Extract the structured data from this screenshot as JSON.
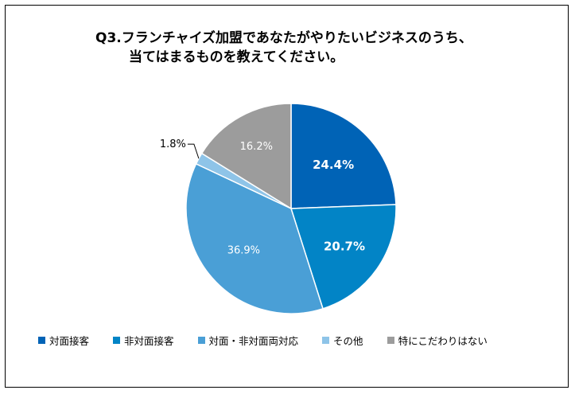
{
  "chart_data": {
    "type": "pie",
    "title_lines": [
      "Q3.フランチャイズ加盟であなたがやりたいビジネスのうち、",
      "当てはまるものを教えてください。"
    ],
    "slices": [
      {
        "label": "対面接客",
        "value": 24.4,
        "display": "24.4%",
        "color": "#0063b6"
      },
      {
        "label": "非対面接客",
        "value": 20.7,
        "display": "20.7%",
        "color": "#0284c6"
      },
      {
        "label": "対面・非対面両対応",
        "value": 36.9,
        "display": "36.9%",
        "color": "#4a9fd6"
      },
      {
        "label": "その他",
        "value": 1.8,
        "display": "1.8%",
        "color": "#8ec4e8"
      },
      {
        "label": "特にこだわりはない",
        "value": 16.2,
        "display": "16.2%",
        "color": "#9c9c9c"
      }
    ],
    "start": "top, clockwise",
    "legend_position": "bottom"
  }
}
